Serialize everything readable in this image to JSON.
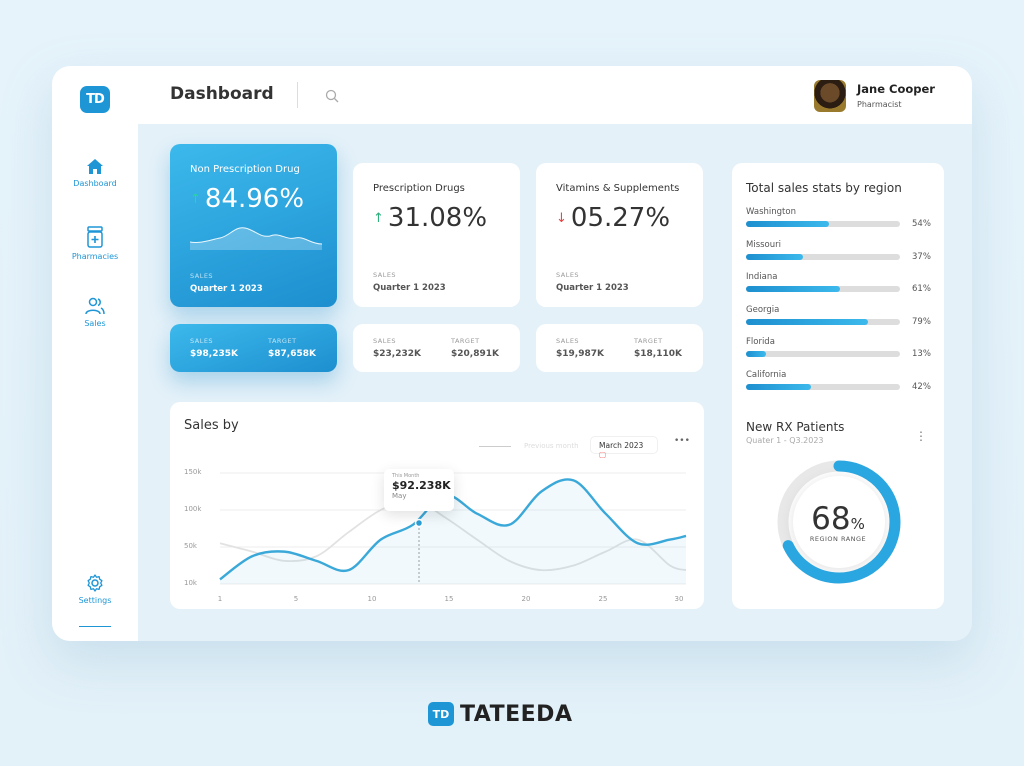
{
  "app": {
    "logo_text": "TD",
    "page_title": "Dashboard"
  },
  "user": {
    "name": "Jane Cooper",
    "role": "Pharmacist"
  },
  "nav": [
    {
      "label": "Dashboard",
      "icon": "home-icon"
    },
    {
      "label": "Pharmacies",
      "icon": "pharmacy-icon"
    },
    {
      "label": "Sales",
      "icon": "users-icon"
    },
    {
      "label": "Settings",
      "icon": "gear-icon"
    }
  ],
  "stat_cards": [
    {
      "title": "Non Prescription Drug",
      "percent": "84.96%",
      "trend": "up",
      "sales_label": "SALES",
      "period": "Quarter 1 2023",
      "footer": {
        "sales_label": "SALES",
        "sales": "$98,235K",
        "target_label": "TARGET",
        "target": "$87,658K"
      }
    },
    {
      "title": "Prescription Drugs",
      "percent": "31.08%",
      "trend": "up",
      "sales_label": "SALES",
      "period": "Quarter 1 2023",
      "footer": {
        "sales_label": "SALES",
        "sales": "$23,232K",
        "target_label": "TARGET",
        "target": "$20,891K"
      }
    },
    {
      "title": "Vitamins & Supplements",
      "percent": "05.27%",
      "trend": "down",
      "sales_label": "SALES",
      "period": "Quarter 1 2023",
      "footer": {
        "sales_label": "SALES",
        "sales": "$19,987K",
        "target_label": "TARGET",
        "target": "$18,110K"
      }
    }
  ],
  "regions": {
    "title": "Total sales stats by region",
    "items": [
      {
        "name": "Washington",
        "pct_label": "54%",
        "value": 0.54
      },
      {
        "name": "Missouri",
        "pct_label": "37%",
        "value": 0.37
      },
      {
        "name": "Indiana",
        "pct_label": "61%",
        "value": 0.61
      },
      {
        "name": "Georgia",
        "pct_label": "79%",
        "value": 0.79
      },
      {
        "name": "Florida",
        "pct_label": "13%",
        "value": 0.13
      },
      {
        "name": "California",
        "pct_label": "42%",
        "value": 0.42
      }
    ]
  },
  "rx": {
    "title": "New RX Patients",
    "subtitle": "Quater 1 - Q3.2023",
    "value": "68",
    "unit": "%",
    "label": "REGION RANGE",
    "fraction": 0.68
  },
  "sales_chart": {
    "title": "Sales by",
    "legend_text": "Previous month",
    "month": "March 2023",
    "more": "•••",
    "tooltip": {
      "label": "This Month",
      "value": "$92.238K",
      "month": "May"
    }
  },
  "chart_data": {
    "type": "line",
    "title": "Sales by",
    "x": [
      1,
      3,
      5,
      7,
      9,
      11,
      13,
      15,
      17,
      19,
      21,
      23,
      25,
      27,
      29,
      30
    ],
    "xticks": [
      "1",
      "5",
      "10",
      "15",
      "20",
      "25",
      "30"
    ],
    "yticks": [
      "150k",
      "100k",
      "50k",
      "10k"
    ],
    "ylim": [
      10,
      150
    ],
    "series": [
      {
        "name": "This Month",
        "values": [
          15,
          40,
          45,
          35,
          25,
          60,
          80,
          120,
          95,
          80,
          125,
          140,
          95,
          55,
          60,
          65
        ]
      },
      {
        "name": "Previous month",
        "values": [
          55,
          45,
          35,
          40,
          70,
          100,
          115,
          90,
          60,
          35,
          25,
          30,
          45,
          60,
          30,
          25
        ]
      }
    ]
  },
  "brand": {
    "text": "TATEEDA",
    "logo": "TD"
  },
  "colors": {
    "accent": "#1e96d6",
    "up": "#2bb07b",
    "down": "#e64545"
  }
}
